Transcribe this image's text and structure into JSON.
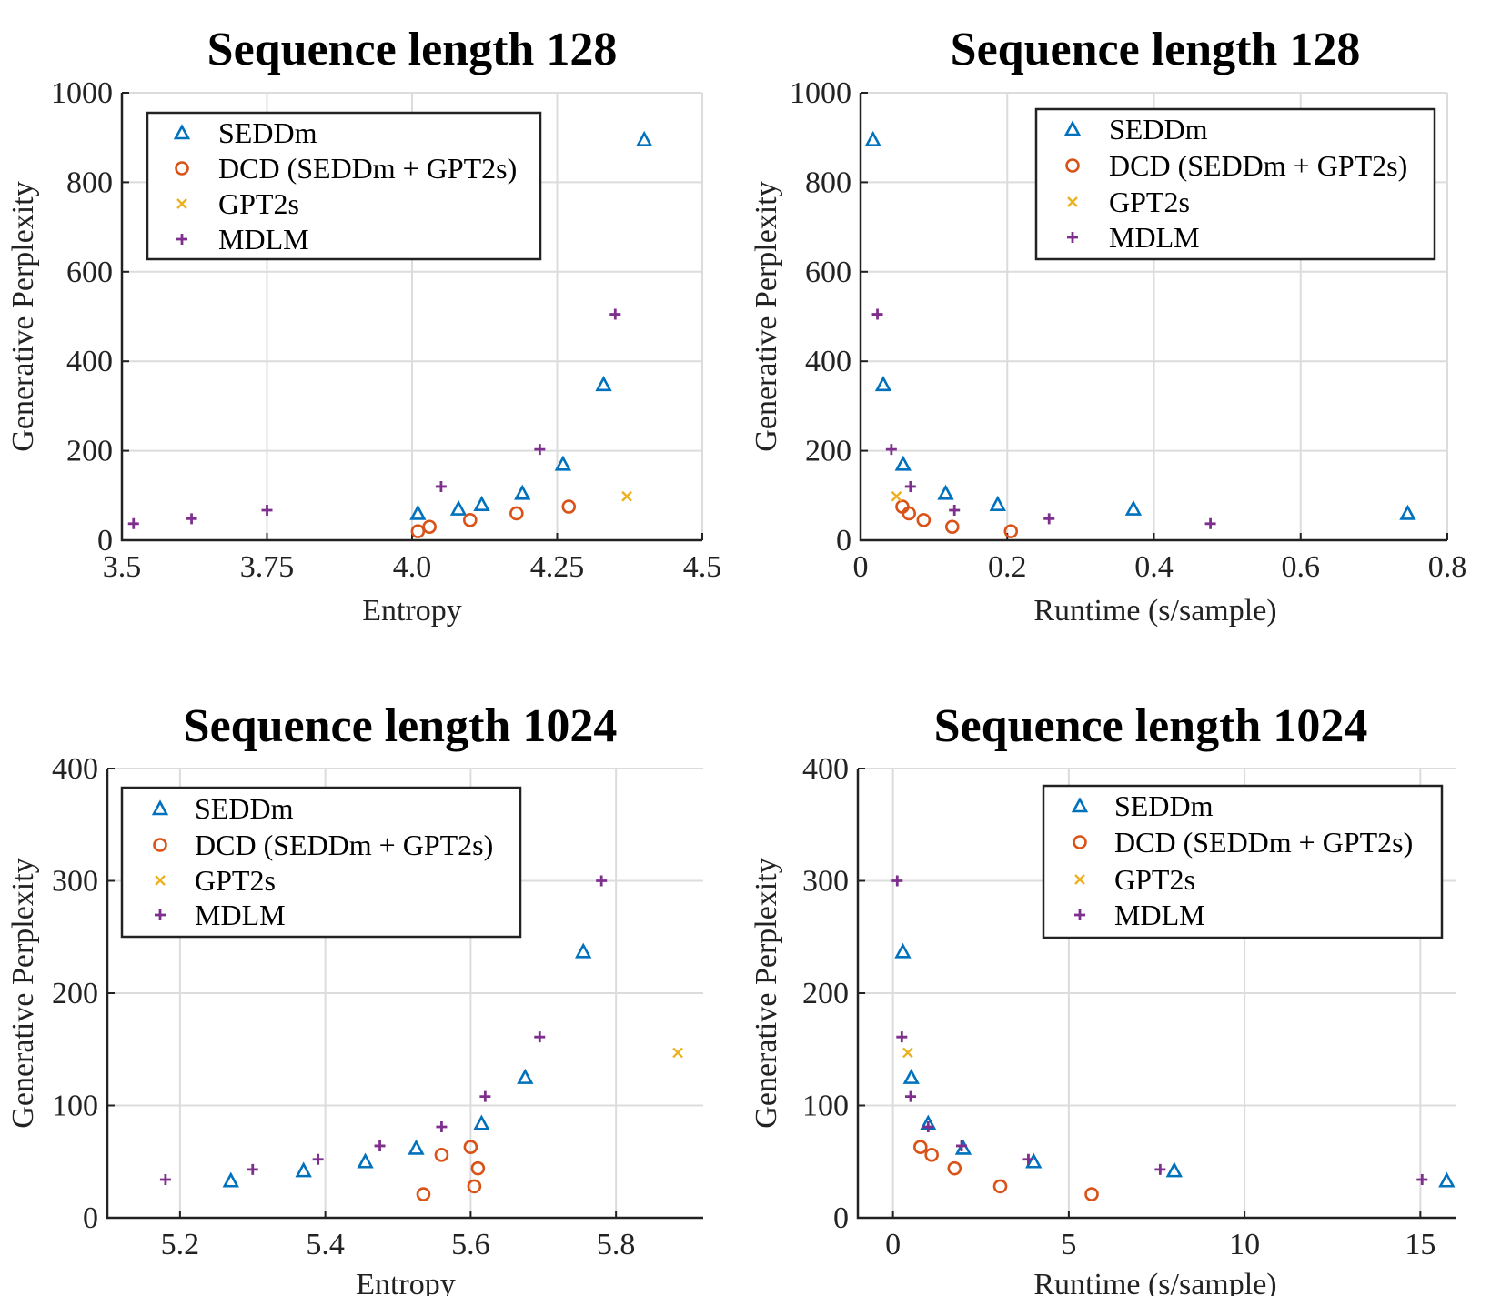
{
  "colors": {
    "SEDDm": "#0072BD",
    "DCD": "#D95319",
    "GPT2s": "#EDB120",
    "MDLM": "#7E2F8E"
  },
  "chart_data": [
    {
      "type": "scatter",
      "title": "Sequence length 128",
      "xlabel": "Entropy",
      "ylabel": "Generative Perplexity",
      "xlim": [
        3.5,
        4.5
      ],
      "ylim": [
        0,
        1000
      ],
      "xticks": [
        3.5,
        3.75,
        4.0,
        4.25,
        4.5
      ],
      "xtick_labels": [
        "3.5",
        "3.75",
        "4.0",
        "4.25",
        "4.5"
      ],
      "yticks": [
        0,
        200,
        400,
        600,
        800,
        1000
      ],
      "ytick_labels": [
        "0",
        "200",
        "400",
        "600",
        "800",
        "1000"
      ],
      "grid": true,
      "legend_position": "top-left",
      "series": [
        {
          "name": "SEDDm",
          "marker": "triangle",
          "x": [
            4.01,
            4.08,
            4.12,
            4.19,
            4.26,
            4.33,
            4.4
          ],
          "y": [
            60,
            70,
            80,
            105,
            170,
            348,
            895
          ]
        },
        {
          "name": "DCD (SEDDm + GPT2s)",
          "marker": "circle",
          "x": [
            4.01,
            4.03,
            4.1,
            4.18,
            4.27
          ],
          "y": [
            20,
            30,
            45,
            60,
            75
          ]
        },
        {
          "name": "GPT2s",
          "marker": "x",
          "x": [
            4.37
          ],
          "y": [
            98
          ]
        },
        {
          "name": "MDLM",
          "marker": "plus",
          "x": [
            3.52,
            3.62,
            3.75,
            4.05,
            4.22,
            4.35
          ],
          "y": [
            37,
            48,
            67,
            120,
            203,
            505
          ]
        }
      ]
    },
    {
      "type": "scatter",
      "title": "Sequence length 128",
      "xlabel": "Runtime (s/sample)",
      "ylabel": "Generative Perplexity",
      "xlim": [
        0,
        0.8
      ],
      "ylim": [
        0,
        1000
      ],
      "xticks": [
        0,
        0.2,
        0.4,
        0.6,
        0.8
      ],
      "xtick_labels": [
        "0",
        "0.2",
        "0.4",
        "0.6",
        "0.8"
      ],
      "yticks": [
        0,
        200,
        400,
        600,
        800,
        1000
      ],
      "ytick_labels": [
        "0",
        "200",
        "400",
        "600",
        "800",
        "1000"
      ],
      "grid": true,
      "legend_position": "top-right",
      "series": [
        {
          "name": "SEDDm",
          "marker": "triangle",
          "x": [
            0.017,
            0.031,
            0.058,
            0.116,
            0.187,
            0.372,
            0.746
          ],
          "y": [
            895,
            348,
            170,
            105,
            80,
            70,
            60
          ]
        },
        {
          "name": "DCD (SEDDm + GPT2s)",
          "marker": "circle",
          "x": [
            0.057,
            0.066,
            0.086,
            0.125,
            0.205
          ],
          "y": [
            75,
            60,
            45,
            30,
            20
          ]
        },
        {
          "name": "GPT2s",
          "marker": "x",
          "x": [
            0.049
          ],
          "y": [
            98
          ]
        },
        {
          "name": "MDLM",
          "marker": "plus",
          "x": [
            0.023,
            0.042,
            0.068,
            0.128,
            0.257,
            0.477
          ],
          "y": [
            505,
            203,
            120,
            67,
            48,
            37
          ]
        }
      ]
    },
    {
      "type": "scatter",
      "title": "Sequence length 1024",
      "xlabel": "Entropy",
      "ylabel": "Generative Perplexity",
      "xlim": [
        5.1,
        5.92
      ],
      "ylim": [
        0,
        400
      ],
      "xticks": [
        5.2,
        5.4,
        5.6,
        5.8
      ],
      "xtick_labels": [
        "5.2",
        "5.4",
        "5.6",
        "5.8"
      ],
      "yticks": [
        0,
        100,
        200,
        300,
        400
      ],
      "ytick_labels": [
        "0",
        "100",
        "200",
        "300",
        "400"
      ],
      "grid": true,
      "legend_position": "top-left",
      "series": [
        {
          "name": "SEDDm",
          "marker": "triangle",
          "x": [
            5.27,
            5.37,
            5.455,
            5.525,
            5.615,
            5.675,
            5.755
          ],
          "y": [
            33,
            42,
            50,
            62,
            84,
            125,
            237
          ]
        },
        {
          "name": "DCD (SEDDm + GPT2s)",
          "marker": "circle",
          "x": [
            5.535,
            5.56,
            5.6,
            5.61,
            5.605
          ],
          "y": [
            21,
            56,
            63,
            44,
            28
          ]
        },
        {
          "name": "GPT2s",
          "marker": "x",
          "x": [
            5.885
          ],
          "y": [
            147
          ]
        },
        {
          "name": "MDLM",
          "marker": "plus",
          "x": [
            5.18,
            5.3,
            5.39,
            5.475,
            5.56,
            5.62,
            5.695,
            5.78
          ],
          "y": [
            34,
            43,
            52,
            64,
            81,
            108,
            161,
            300
          ]
        }
      ]
    },
    {
      "type": "scatter",
      "title": "Sequence length 1024",
      "xlabel": "Runtime (s/sample)",
      "ylabel": "Generative Perplexity",
      "xlim": [
        -1,
        16
      ],
      "ylim": [
        0,
        400
      ],
      "xticks": [
        0,
        5,
        10,
        15
      ],
      "xtick_labels": [
        "0",
        "5",
        "10",
        "15"
      ],
      "yticks": [
        0,
        100,
        200,
        300,
        400
      ],
      "ytick_labels": [
        "0",
        "100",
        "200",
        "300",
        "400"
      ],
      "grid": true,
      "legend_position": "top-right",
      "series": [
        {
          "name": "SEDDm",
          "marker": "triangle",
          "x": [
            0.28,
            0.52,
            1.0,
            2.0,
            4.0,
            8.0,
            15.75
          ],
          "y": [
            237,
            125,
            84,
            62,
            50,
            42,
            33
          ]
        },
        {
          "name": "DCD (SEDDm + GPT2s)",
          "marker": "circle",
          "x": [
            0.78,
            1.1,
            1.75,
            3.05,
            5.65
          ],
          "y": [
            63,
            56,
            44,
            28,
            21
          ]
        },
        {
          "name": "GPT2s",
          "marker": "x",
          "x": [
            0.42
          ],
          "y": [
            147
          ]
        },
        {
          "name": "MDLM",
          "marker": "plus",
          "x": [
            0.12,
            0.25,
            0.5,
            1.0,
            1.95,
            3.85,
            7.6,
            15.05
          ],
          "y": [
            300,
            161,
            108,
            81,
            64,
            52,
            43,
            34
          ]
        }
      ]
    }
  ]
}
